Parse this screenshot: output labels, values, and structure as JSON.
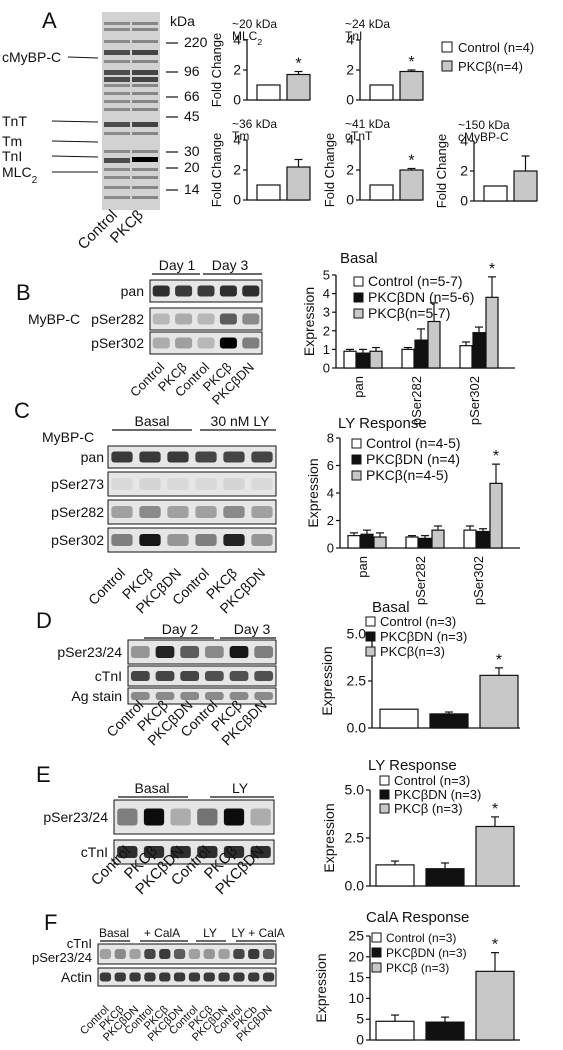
{
  "colors": {
    "control": "#ffffff",
    "pkcbdn": "#111111",
    "pkcb": "#c8c8c8",
    "stroke": "#111111"
  },
  "panels": {
    "A": {
      "label": "A",
      "gel_kda_label": "kDa",
      "gel_markers": [
        "220",
        "96",
        "66",
        "45",
        "30",
        "20",
        "14"
      ],
      "gel_left_labels": [
        "cMyBP-C",
        "TnT",
        "Tm",
        "TnI",
        "MLC2"
      ],
      "gel_lanes": [
        "Control",
        "PKCβ"
      ],
      "legend": [
        "Control (n=4)",
        "PKCβ(n=4)"
      ],
      "ylabel": "Fold Change"
    },
    "B": {
      "label": "B",
      "blot_groups": [
        "Day 1",
        "Day 3"
      ],
      "blot_title": "MyBP-C",
      "blot_rows": [
        "pan",
        "pSer282",
        "pSer302"
      ],
      "lanes": [
        "Control",
        "PKCβ",
        "Control",
        "PKCβ",
        "PKCβDN"
      ]
    },
    "C": {
      "label": "C",
      "blot_groups": [
        "Basal",
        "30 nM LY"
      ],
      "blot_title": "MyBP-C",
      "blot_rows": [
        "pan",
        "pSer273",
        "pSer282",
        "pSer302"
      ],
      "lanes": [
        "Control",
        "PKCβ",
        "PKCβDN",
        "Control",
        "PKCβ",
        "PKCβDN"
      ]
    },
    "D": {
      "label": "D",
      "blot_groups": [
        "Day 2",
        "Day 3"
      ],
      "blot_rows": [
        "pSer23/24",
        "cTnI",
        "Ag stain"
      ],
      "lanes": [
        "Control",
        "PKCβ",
        "PKCβDN",
        "Control",
        "PKCβ",
        "PKCβDN"
      ]
    },
    "E": {
      "label": "E",
      "blot_groups": [
        "Basal",
        "LY"
      ],
      "blot_rows": [
        "pSer23/24",
        "cTnI"
      ],
      "lanes": [
        "Control",
        "PKCβ",
        "PKCβDN",
        "Control",
        "PKCβ",
        "PKCβDN"
      ]
    },
    "F": {
      "label": "F",
      "blot_groups": [
        "Basal",
        "+ CalA",
        "LY",
        "LY + CalA"
      ],
      "blot_rows": [
        "cTnI pSer23/24",
        "Actin"
      ],
      "lanes": [
        "Control",
        "PKCβ",
        "PKCβDN",
        "Control",
        "PKCβ",
        "PKCβDN",
        "Control",
        "PKCβ",
        "PKCβDN",
        "Control",
        "PKCb",
        "PKCβDN"
      ]
    }
  },
  "chart_data": [
    {
      "id": "A-MLC2",
      "type": "bar",
      "title": "~20 kDa",
      "subtitle": "MLC2",
      "ylabel": "Fold Change",
      "ylim": [
        0,
        4
      ],
      "yticks": [
        0,
        2,
        4
      ],
      "series": [
        {
          "name": "Control (n=4)",
          "values": [
            1.0
          ],
          "err": [
            0
          ]
        },
        {
          "name": "PKCβ(n=4)",
          "values": [
            1.7
          ],
          "err": [
            0.2
          ]
        }
      ],
      "sig": [
        1
      ]
    },
    {
      "id": "A-TnI",
      "type": "bar",
      "title": "~24 kDa",
      "subtitle": "TnI",
      "ylabel": "",
      "ylim": [
        0,
        4
      ],
      "yticks": [
        0,
        2,
        4
      ],
      "series": [
        {
          "name": "Control (n=4)",
          "values": [
            1.0
          ],
          "err": [
            0
          ]
        },
        {
          "name": "PKCβ(n=4)",
          "values": [
            1.9
          ],
          "err": [
            0.1
          ]
        }
      ],
      "sig": [
        1
      ]
    },
    {
      "id": "A-Tm",
      "type": "bar",
      "title": "~36 kDa",
      "subtitle": "Tm",
      "ylabel": "Fold Change",
      "ylim": [
        0,
        4
      ],
      "yticks": [
        0,
        2,
        4
      ],
      "series": [
        {
          "name": "Control (n=4)",
          "values": [
            1.0
          ],
          "err": [
            0
          ]
        },
        {
          "name": "PKCβ(n=4)",
          "values": [
            2.2
          ],
          "err": [
            0.5
          ]
        }
      ],
      "sig": []
    },
    {
      "id": "A-cTnT",
      "type": "bar",
      "title": "~41 kDa",
      "subtitle": "cTnT",
      "ylabel": "Fold Change",
      "ylim": [
        0,
        4
      ],
      "yticks": [
        0,
        2,
        4
      ],
      "series": [
        {
          "name": "Control (n=4)",
          "values": [
            1.0
          ],
          "err": [
            0
          ]
        },
        {
          "name": "PKCβ(n=4)",
          "values": [
            2.0
          ],
          "err": [
            0.1
          ]
        }
      ],
      "sig": [
        1
      ]
    },
    {
      "id": "A-cMyBPC",
      "type": "bar",
      "title": "~150 kDa",
      "subtitle": "cMyBP-C",
      "ylabel": "Fold Change",
      "ylim": [
        0,
        4
      ],
      "yticks": [
        0,
        2,
        4
      ],
      "series": [
        {
          "name": "Control (n=4)",
          "values": [
            1.0
          ],
          "err": [
            0
          ]
        },
        {
          "name": "PKCβ(n=4)",
          "values": [
            2.0
          ],
          "err": [
            1.0
          ]
        }
      ],
      "sig": []
    },
    {
      "id": "B",
      "type": "bar",
      "title": "Basal",
      "ylabel": "Expression",
      "ylim": [
        0,
        5
      ],
      "yticks": [
        0,
        1,
        2,
        3,
        4,
        5
      ],
      "categories": [
        "pan",
        "pSer282",
        "pSer302"
      ],
      "series": [
        {
          "name": "Control (n=5-7)",
          "values": [
            0.9,
            1.0,
            1.2
          ],
          "err": [
            0.1,
            0.1,
            0.2
          ]
        },
        {
          "name": "PKCβDN (n=5-6)",
          "values": [
            0.8,
            1.5,
            1.9
          ],
          "err": [
            0.2,
            0.6,
            0.3
          ]
        },
        {
          "name": "PKCβ(n=5-7)",
          "values": [
            0.9,
            2.5,
            3.8
          ],
          "err": [
            0.2,
            1.0,
            1.1
          ]
        }
      ],
      "sig": [
        [
          2,
          2
        ]
      ]
    },
    {
      "id": "C",
      "type": "bar",
      "title": "LY Response",
      "ylabel": "Expression",
      "ylim": [
        0,
        8
      ],
      "yticks": [
        0,
        2,
        4,
        6,
        8
      ],
      "categories": [
        "pan",
        "pSer282",
        "pSer302"
      ],
      "series": [
        {
          "name": "Control (n=4-5)",
          "values": [
            0.9,
            0.8,
            1.3
          ],
          "err": [
            0.2,
            0.1,
            0.3
          ]
        },
        {
          "name": "PKCβDN (n=4)",
          "values": [
            1.0,
            0.7,
            1.2
          ],
          "err": [
            0.3,
            0.2,
            0.2
          ]
        },
        {
          "name": "PKCβ(n=4-5)",
          "values": [
            0.8,
            1.3,
            4.7
          ],
          "err": [
            0.3,
            0.3,
            1.4
          ]
        }
      ],
      "sig": [
        [
          2,
          2
        ]
      ]
    },
    {
      "id": "D",
      "type": "bar",
      "title": "Basal",
      "ylabel": "Expression",
      "ylim": [
        0,
        5
      ],
      "yticks": [
        0.0,
        2.5,
        5.0
      ],
      "categories": [
        ""
      ],
      "series": [
        {
          "name": "Control (n=3)",
          "values": [
            1.0
          ],
          "err": [
            0
          ]
        },
        {
          "name": "PKCβDN (n=3)",
          "values": [
            0.75
          ],
          "err": [
            0.1
          ]
        },
        {
          "name": "PKCβ(n=3)",
          "values": [
            2.8
          ],
          "err": [
            0.4
          ]
        }
      ],
      "sig": [
        [
          2,
          0
        ]
      ]
    },
    {
      "id": "E",
      "type": "bar",
      "title": "LY Response",
      "ylabel": "Expression",
      "ylim": [
        0,
        5
      ],
      "yticks": [
        0.0,
        2.5,
        5.0
      ],
      "categories": [
        ""
      ],
      "series": [
        {
          "name": "Control (n=3)",
          "values": [
            1.1
          ],
          "err": [
            0.2
          ]
        },
        {
          "name": "PKCβDN (n=3)",
          "values": [
            0.9
          ],
          "err": [
            0.3
          ]
        },
        {
          "name": "PKCβ (n=3)",
          "values": [
            3.1
          ],
          "err": [
            0.5
          ]
        }
      ],
      "sig": [
        [
          2,
          0
        ]
      ]
    },
    {
      "id": "F",
      "type": "bar",
      "title": "CalA Response",
      "ylabel": "Expression",
      "ylim": [
        0,
        25
      ],
      "yticks": [
        0,
        5,
        10,
        15,
        20,
        25
      ],
      "categories": [
        ""
      ],
      "series": [
        {
          "name": "Control (n=3)",
          "values": [
            4.5
          ],
          "err": [
            1.5
          ]
        },
        {
          "name": "PKCβDN (n=3)",
          "values": [
            4.3
          ],
          "err": [
            1.2
          ]
        },
        {
          "name": "PKCβ (n=3)",
          "values": [
            16.5
          ],
          "err": [
            4.5
          ]
        }
      ],
      "sig": [
        [
          2,
          0
        ]
      ]
    }
  ]
}
